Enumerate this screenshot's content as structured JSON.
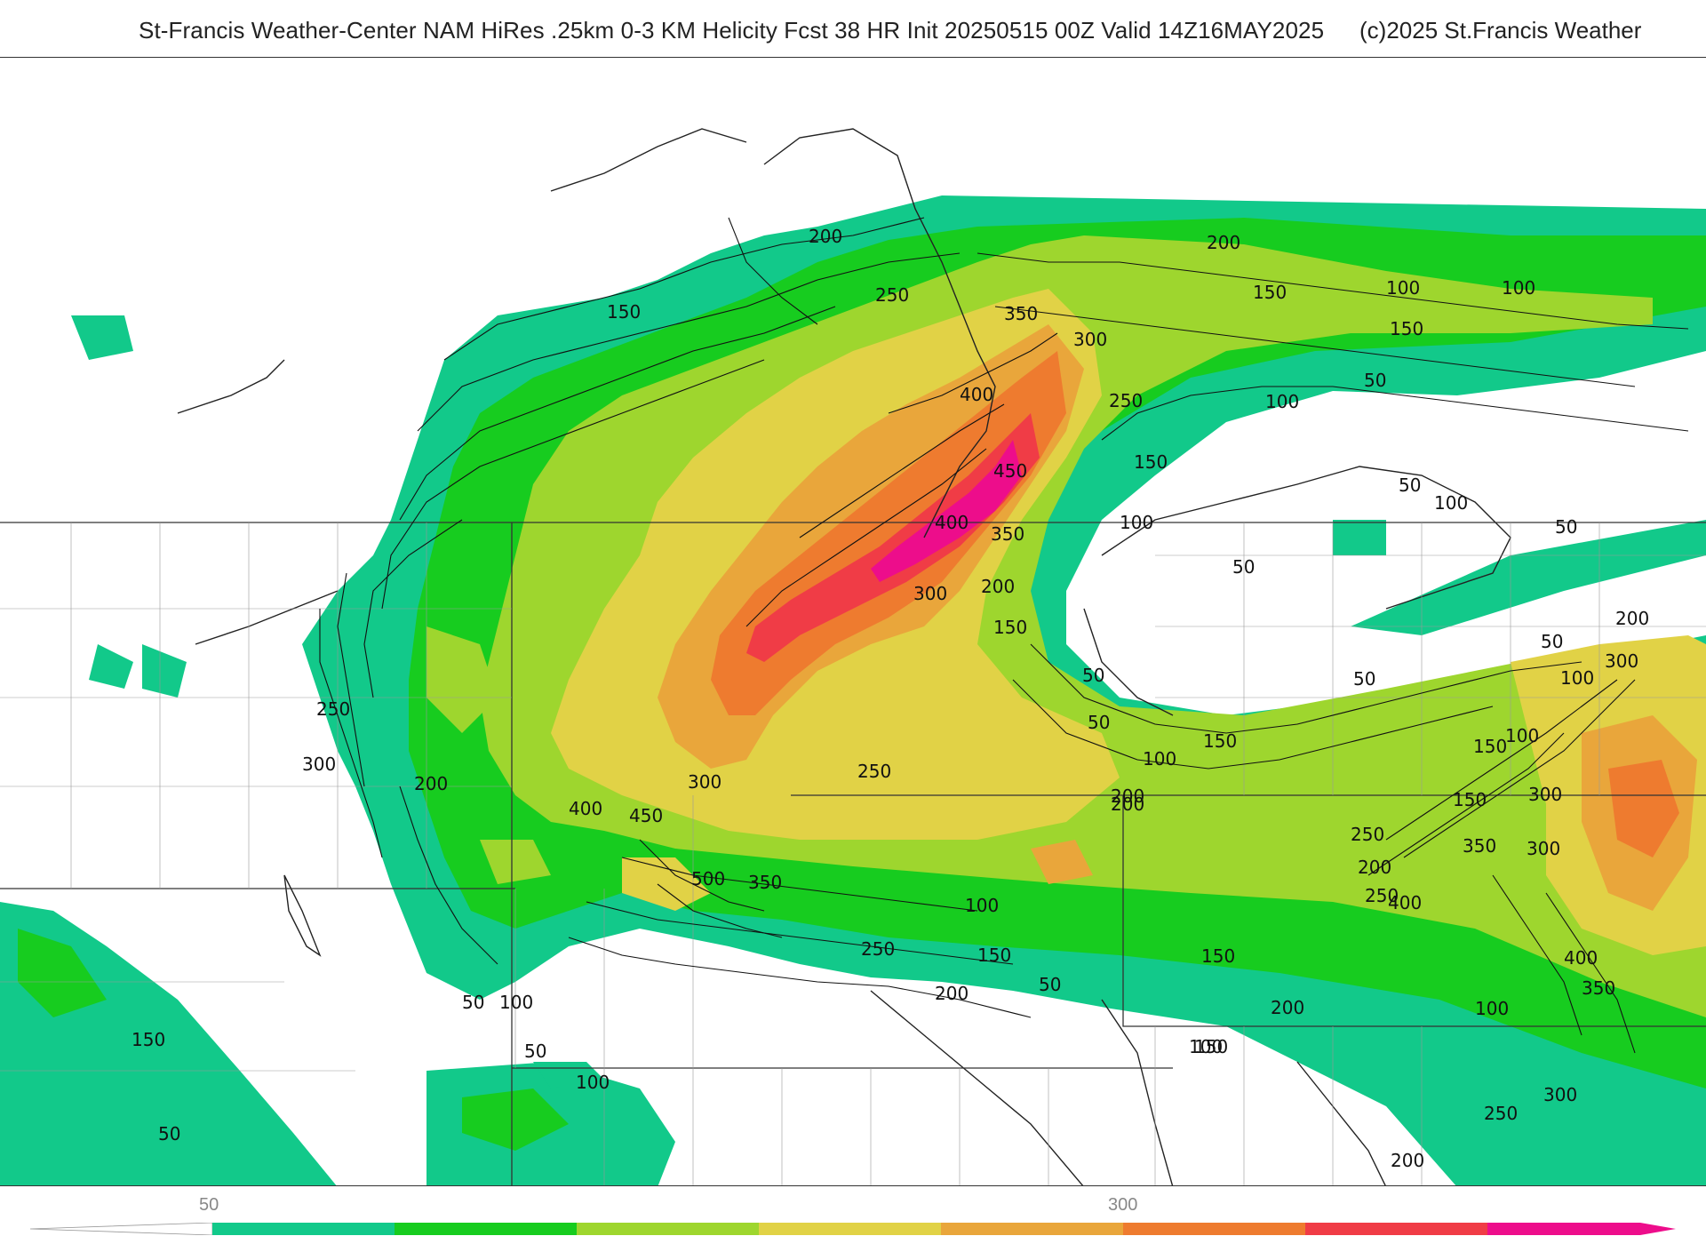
{
  "header": {
    "title": "St-Francis Weather-Center NAM HiRes .25km 0-3 KM Helicity Fcst 38 HR Init 20250515 00Z  Valid 14Z16MAY2025",
    "copyright": "(c)2025 St.Francis Weather"
  },
  "colorbar": {
    "tick_labels": [
      "50",
      "300"
    ],
    "bins": [
      {
        "from": 0,
        "to": 50,
        "color": "#ffffff"
      },
      {
        "from": 50,
        "to": 100,
        "color": "#12c98a"
      },
      {
        "from": 100,
        "to": 150,
        "color": "#17cc1f"
      },
      {
        "from": 150,
        "to": 200,
        "color": "#9ed62e"
      },
      {
        "from": 200,
        "to": 250,
        "color": "#e1d246"
      },
      {
        "from": 250,
        "to": 300,
        "color": "#e9a63b"
      },
      {
        "from": 300,
        "to": 350,
        "color": "#ee7b2f"
      },
      {
        "from": 350,
        "to": 400,
        "color": "#f03c46"
      },
      {
        "from": 400,
        "to": 450,
        "color": "#ed0d8b"
      }
    ]
  },
  "contour_labels": [
    "200",
    "250",
    "150",
    "300",
    "350",
    "400",
    "450",
    "400",
    "350",
    "300",
    "250",
    "200",
    "150",
    "100",
    "50",
    "200",
    "150",
    "100",
    "150",
    "50",
    "100",
    "150",
    "50",
    "100",
    "50",
    "100",
    "50",
    "300",
    "200",
    "50",
    "100",
    "300",
    "250",
    "200",
    "150",
    "100",
    "50",
    "200",
    "150",
    "100",
    "50",
    "400",
    "450",
    "500",
    "350",
    "300",
    "250",
    "200",
    "150",
    "100",
    "50",
    "250",
    "200",
    "150",
    "100",
    "150",
    "350",
    "300",
    "400",
    "250",
    "200",
    "150",
    "100",
    "400",
    "350",
    "300",
    "250",
    "200",
    "150",
    "50",
    "100",
    "50",
    "100",
    "150",
    "50",
    "100",
    "50",
    "300",
    "250",
    "200"
  ]
}
